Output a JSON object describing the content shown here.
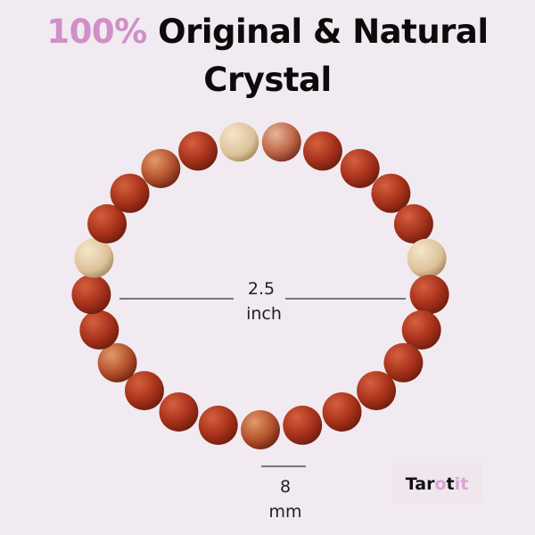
{
  "title": {
    "accent": "100%",
    "line1": "Original & Natural",
    "line2": "Crystal"
  },
  "diameter": {
    "value": "2.5",
    "unit": "inch"
  },
  "bead_size": {
    "value": "8",
    "unit": "mm"
  },
  "logo": {
    "part1": "Tar",
    "part2": "o",
    "part3": "t",
    "part4": "it"
  },
  "colors": {
    "background": "#f1eaf0",
    "accent": "#d08fc6",
    "bead_red": "#a8321b",
    "bead_cream": "#e6cfa8"
  },
  "beads": [
    "red",
    "cream",
    "striped",
    "red",
    "red",
    "red",
    "red",
    "cream",
    "red",
    "red",
    "red",
    "red",
    "red",
    "red",
    "mottled",
    "red",
    "red",
    "red",
    "mottled",
    "red",
    "red",
    "cream",
    "red",
    "red",
    "mottled"
  ]
}
